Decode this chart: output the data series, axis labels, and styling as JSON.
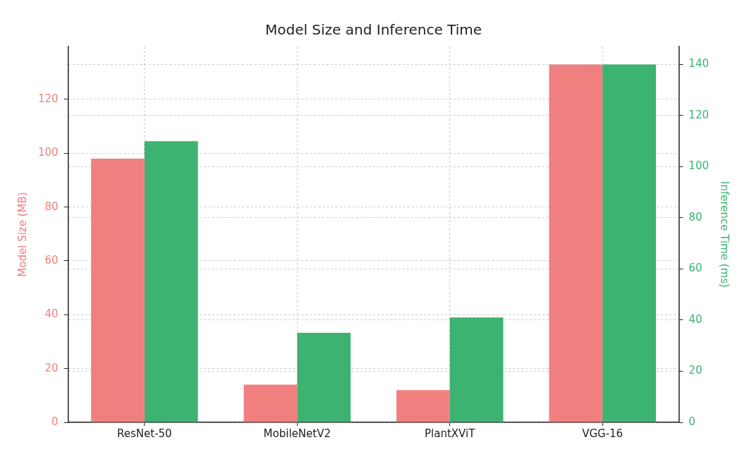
{
  "chart_data": {
    "type": "bar",
    "title": "Model Size and Inference Time",
    "ylabel": "Model Size (MB)",
    "y2label": "Inference Time (ms)",
    "categories": [
      "ResNet-50",
      "MobileNetV2",
      "PlantXViT",
      "VGG-16"
    ],
    "series": [
      {
        "color": "#f08080",
        "values": [
          98,
          14,
          12,
          133
        ]
      },
      {
        "color": "#3cb371",
        "values": [
          110,
          35,
          41,
          140
        ],
        "axis": "y2"
      }
    ],
    "ylim": [
      0,
      139.65
    ],
    "yticks": [
      0,
      20,
      40,
      60,
      80,
      100,
      120
    ],
    "y2lim": [
      0,
      147
    ],
    "y2ticks": [
      0,
      20,
      40,
      60,
      80,
      100,
      120,
      140
    ],
    "grid": true
  }
}
